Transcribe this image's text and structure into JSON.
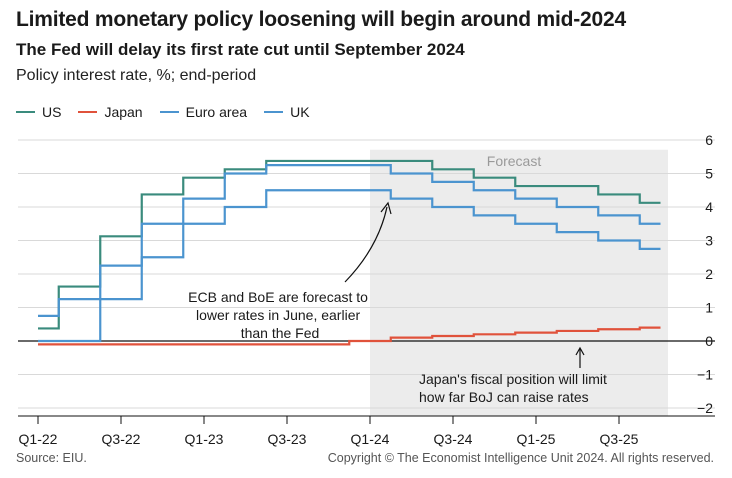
{
  "title": "Limited monetary policy loosening will begin around mid-2024",
  "subtitle": "The Fed will delay its first rate cut until September 2024",
  "units_label": "Policy interest rate, %; end-period",
  "source": "Source: EIU.",
  "copyright": "Copyright © The Economist Intelligence Unit 2024. All rights reserved.",
  "colors": {
    "US": "#3a8b7d",
    "Japan": "#e0523b",
    "Euro area": "#4b94cf",
    "UK": "#4b94cf",
    "forecast_band": "#ececec"
  },
  "chart_data": {
    "type": "line",
    "step": true,
    "x": [
      "Q1-22",
      "Q2-22",
      "Q3-22",
      "Q4-22",
      "Q1-23",
      "Q2-23",
      "Q3-23",
      "Q4-23",
      "Q1-24",
      "Q2-24",
      "Q3-24",
      "Q4-24",
      "Q1-25",
      "Q2-25",
      "Q3-25",
      "Q4-25"
    ],
    "x_tick_labels": [
      "Q1-22",
      "Q3-22",
      "Q1-23",
      "Q3-23",
      "Q1-24",
      "Q3-24",
      "Q1-25",
      "Q3-25"
    ],
    "x_tick_indices": [
      0,
      2,
      4,
      6,
      8,
      10,
      12,
      14
    ],
    "series": [
      {
        "name": "US",
        "values": [
          0.375,
          1.625,
          3.125,
          4.375,
          4.875,
          5.125,
          5.375,
          5.375,
          5.375,
          5.375,
          5.125,
          4.875,
          4.625,
          4.625,
          4.375,
          4.125
        ]
      },
      {
        "name": "Japan",
        "values": [
          -0.1,
          -0.1,
          -0.1,
          -0.1,
          -0.1,
          -0.1,
          -0.1,
          -0.1,
          0.0,
          0.1,
          0.15,
          0.2,
          0.25,
          0.3,
          0.35,
          0.4
        ]
      },
      {
        "name": "Euro area",
        "values": [
          0.0,
          0.0,
          1.25,
          2.5,
          3.5,
          4.0,
          4.5,
          4.5,
          4.5,
          4.25,
          4.0,
          3.75,
          3.5,
          3.25,
          3.0,
          2.75
        ]
      },
      {
        "name": "UK",
        "values": [
          0.75,
          1.25,
          2.25,
          3.5,
          4.25,
          5.0,
          5.25,
          5.25,
          5.25,
          5.0,
          4.75,
          4.5,
          4.25,
          4.0,
          3.75,
          3.5
        ]
      }
    ],
    "ylim": [
      -2,
      6
    ],
    "y_ticks": [
      6,
      5,
      4,
      3,
      2,
      1,
      0,
      -1,
      -2
    ],
    "y_axis_side": "right",
    "forecast_start_index": 8,
    "forecast_label": "Forecast",
    "annotations": [
      {
        "text": [
          "ECB and BoE are forecast to",
          "lower rates in June, earlier",
          "than the Fed"
        ]
      },
      {
        "text": [
          "Japan's fiscal position will limit",
          "how far BoJ can raise rates"
        ]
      }
    ]
  }
}
